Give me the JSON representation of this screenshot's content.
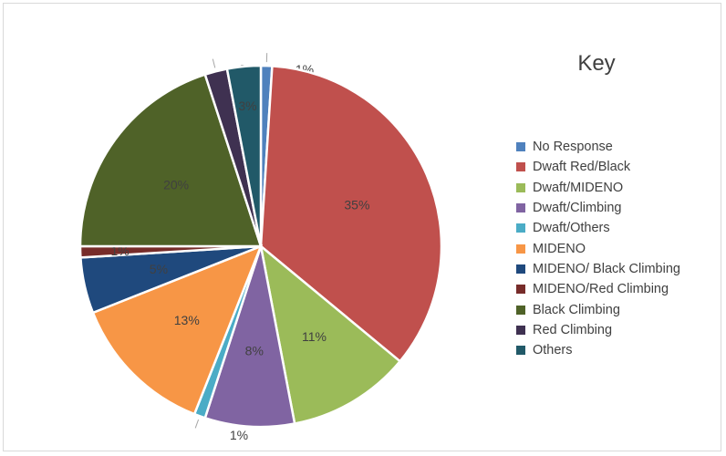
{
  "chart_data": {
    "type": "pie",
    "title": "",
    "legend_title": "Key",
    "legend_position": "right",
    "start_angle_deg": 0,
    "direction": "clockwise",
    "slices": [
      {
        "name": "No Response",
        "value": 1,
        "label": "1%",
        "color": "#4f81bd"
      },
      {
        "name": "Dwaft Red/Black",
        "value": 35,
        "label": "35%",
        "color": "#c0504d"
      },
      {
        "name": "Dwaft/MIDENO",
        "value": 11,
        "label": "11%",
        "color": "#9bbb59"
      },
      {
        "name": "Dwaft/Climbing",
        "value": 8,
        "label": "8%",
        "color": "#8064a2"
      },
      {
        "name": "Dwaft/Others",
        "value": 1,
        "label": "1%",
        "color": "#4bacc6"
      },
      {
        "name": "MIDENO",
        "value": 13,
        "label": "13%",
        "color": "#f79646"
      },
      {
        "name": "MIDENO/ Black Climbing",
        "value": 5,
        "label": "5%",
        "color": "#1f497d"
      },
      {
        "name": "MIDENO/Red Climbing",
        "value": 1,
        "label": "1%",
        "color": "#772c2a"
      },
      {
        "name": "Black Climbing",
        "value": 20,
        "label": "20%",
        "color": "#4f6228"
      },
      {
        "name": "Red Climbing",
        "value": 2,
        "label": "2%",
        "color": "#3f3151"
      },
      {
        "name": "Others",
        "value": 3,
        "label": "3%",
        "color": "#215968"
      }
    ]
  }
}
